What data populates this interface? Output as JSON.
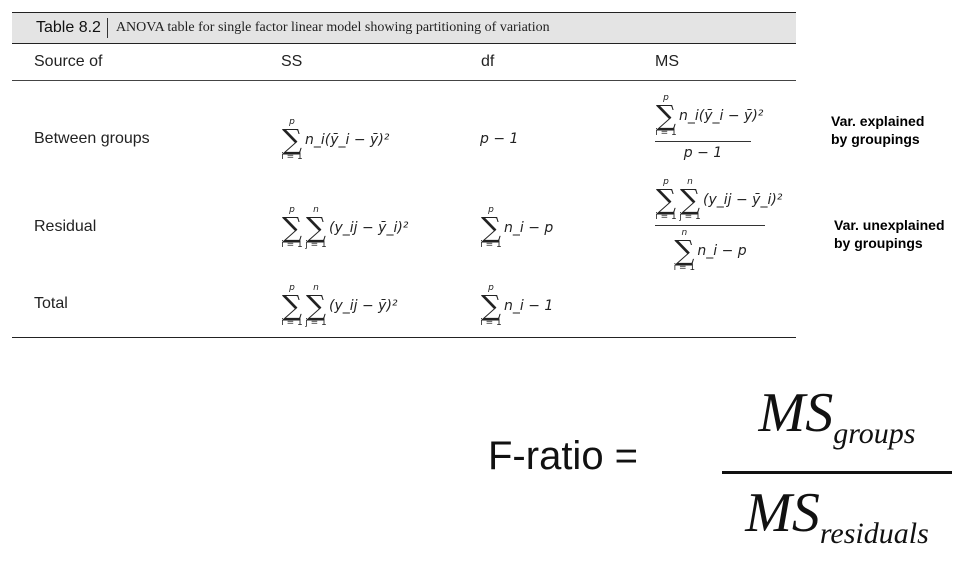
{
  "table": {
    "label": "Table 8.2",
    "caption": "ANOVA table for single factor linear model showing partitioning of variation",
    "headers": [
      "Source of",
      "SS",
      "df",
      "MS"
    ],
    "rows": [
      {
        "source": "Between groups",
        "ss": "n_i(ȳ_i − ȳ)²",
        "df": "p − 1",
        "ms_numerator": "n_i(ȳ_i − ȳ)²",
        "ms_denominator": "p − 1"
      },
      {
        "source": "Residual",
        "ss": "(y_ij − ȳ_i)²",
        "df": "n_i − p",
        "ms_numerator": "(y_ij − ȳ_i)²",
        "ms_denominator": "n_i − p"
      },
      {
        "source": "Total",
        "ss": "(y_ij − ȳ)²",
        "df": "n_i − 1"
      }
    ]
  },
  "annotations": {
    "between": [
      "Var. explained",
      "by groupings"
    ],
    "residual": [
      "Var. unexplained",
      "by groupings"
    ]
  },
  "formula": {
    "label": "F-ratio =",
    "numerator": "MS",
    "numerator_sub": "groups",
    "denominator": "MS",
    "denominator_sub": "residuals"
  }
}
